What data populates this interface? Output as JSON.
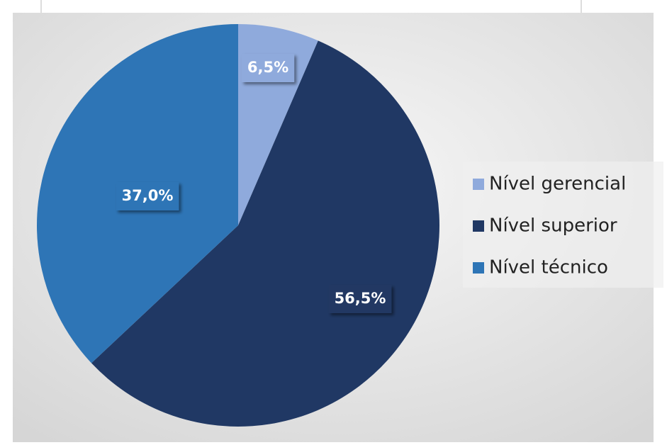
{
  "chart_data": {
    "type": "pie",
    "categories": [
      "Nível gerencial",
      "Nível superior",
      "Nível técnico"
    ],
    "values": [
      6.5,
      56.5,
      37.0
    ],
    "value_labels": [
      "6,5%",
      "56,5%",
      "37,0%"
    ],
    "colors": [
      "#8faadc",
      "#203864",
      "#2e75b6"
    ],
    "legend": "right"
  }
}
